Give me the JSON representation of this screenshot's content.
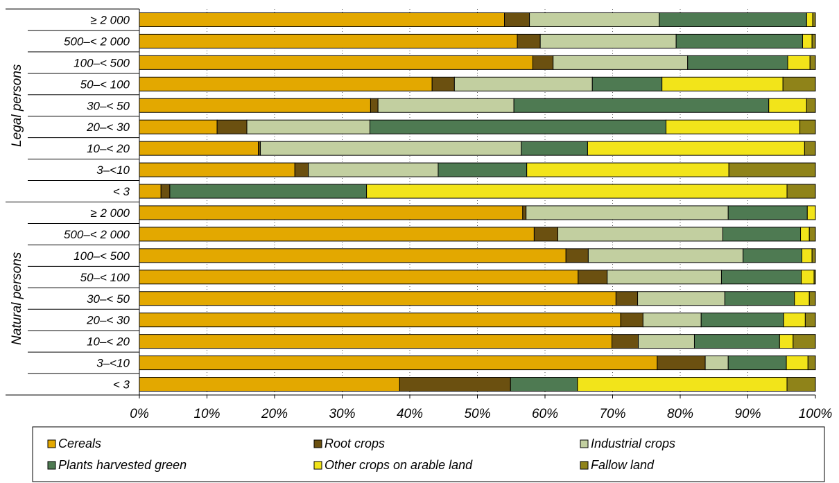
{
  "chart_data": {
    "type": "bar",
    "orientation": "horizontal",
    "stacked": "percent",
    "xlim": [
      0,
      100
    ],
    "x_ticks": [
      "0%",
      "10%",
      "20%",
      "30%",
      "40%",
      "50%",
      "60%",
      "70%",
      "80%",
      "90%",
      "100%"
    ],
    "grid": "vertical dotted",
    "legend_position": "bottom",
    "series_names": [
      "Cereals",
      "Root crops",
      "Industrial crops",
      "Plants harvested green",
      "Other crops on arable land",
      "Fallow land"
    ],
    "colors": [
      "#E3A800",
      "#6B5010",
      "#C2CFA0",
      "#4E7A52",
      "#F2E41A",
      "#8F8319"
    ],
    "groups": [
      {
        "label": "Legal persons",
        "rows": [
          {
            "category": "≥ 2 000",
            "values": [
              54.0,
              3.7,
              19.2,
              21.8,
              0.9,
              0.4
            ]
          },
          {
            "category": "500–< 2 000",
            "values": [
              55.9,
              3.4,
              20.1,
              18.7,
              1.4,
              0.5
            ]
          },
          {
            "category": "100–< 500",
            "values": [
              58.2,
              3.0,
              19.9,
              14.8,
              3.3,
              0.8
            ]
          },
          {
            "category": "50–< 100",
            "values": [
              43.3,
              3.3,
              20.4,
              10.3,
              17.9,
              4.8
            ]
          },
          {
            "category": "30–< 50",
            "values": [
              34.2,
              1.1,
              20.1,
              37.7,
              5.6,
              1.3
            ]
          },
          {
            "category": "20–< 30",
            "values": [
              11.5,
              4.4,
              18.2,
              43.8,
              19.8,
              2.3
            ]
          },
          {
            "category": "10–< 20",
            "values": [
              17.6,
              0.3,
              38.6,
              9.8,
              32.1,
              1.6
            ]
          },
          {
            "category": "3–<10",
            "values": [
              23.0,
              2.0,
              19.2,
              13.1,
              29.9,
              12.8
            ]
          },
          {
            "category": "< 3",
            "values": [
              3.2,
              1.3,
              0.0,
              29.1,
              62.2,
              4.2
            ]
          }
        ]
      },
      {
        "label": "Natural persons",
        "rows": [
          {
            "category": "≥ 2 000",
            "values": [
              56.7,
              0.5,
              29.9,
              11.7,
              1.2,
              0.0
            ]
          },
          {
            "category": "500–< 2 000",
            "values": [
              58.4,
              3.5,
              24.4,
              11.5,
              1.3,
              0.9
            ]
          },
          {
            "category": "100–< 500",
            "values": [
              63.1,
              3.3,
              22.9,
              8.7,
              1.5,
              0.5
            ]
          },
          {
            "category": "50–< 100",
            "values": [
              64.9,
              4.3,
              16.9,
              11.8,
              1.9,
              0.2
            ]
          },
          {
            "category": "30–< 50",
            "values": [
              70.5,
              3.2,
              12.9,
              10.3,
              2.2,
              0.9
            ]
          },
          {
            "category": "20–< 30",
            "values": [
              71.2,
              3.3,
              8.6,
              12.2,
              3.2,
              1.5
            ]
          },
          {
            "category": "10–< 20",
            "values": [
              69.9,
              3.9,
              8.3,
              12.6,
              2.0,
              3.3
            ]
          },
          {
            "category": "3–<10",
            "values": [
              76.6,
              7.1,
              3.4,
              8.6,
              3.2,
              1.1
            ]
          },
          {
            "category": "< 3",
            "values": [
              38.5,
              16.4,
              0.0,
              9.9,
              31.0,
              4.2
            ]
          }
        ]
      }
    ]
  }
}
